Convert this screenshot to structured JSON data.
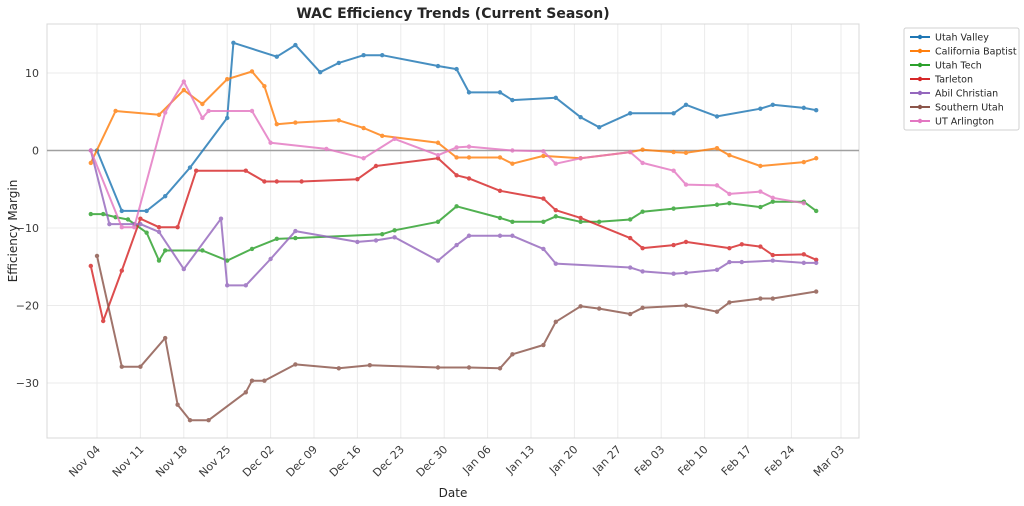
{
  "chart_data": {
    "type": "line",
    "title": "WAC Efficiency Trends (Current Season)",
    "xlabel": "Date",
    "ylabel": "Efficiency Margin",
    "ylim": [
      -37,
      16
    ],
    "yticks": [
      -30,
      -20,
      -10,
      0,
      10
    ],
    "ytick_labels": [
      "−30",
      "−20",
      "−10",
      "0",
      "10"
    ],
    "xlim_dates": [
      "11-01",
      "03-07"
    ],
    "xticks": [
      "11-04",
      "11-11",
      "11-18",
      "11-25",
      "12-02",
      "12-09",
      "12-16",
      "12-23",
      "12-30",
      "01-06",
      "01-13",
      "01-20",
      "01-27",
      "02-03",
      "02-10",
      "02-17",
      "02-24",
      "03-03"
    ],
    "xtick_labels": [
      "Nov 04",
      "Nov 11",
      "Nov 18",
      "Nov 25",
      "Dec 02",
      "Dec 09",
      "Dec 16",
      "Dec 23",
      "Dec 30",
      "Jan 06",
      "Jan 13",
      "Jan 20",
      "Jan 27",
      "Feb 03",
      "Feb 10",
      "Feb 17",
      "Feb 24",
      "Mar 03"
    ],
    "reference_line": 0,
    "grid": true,
    "legend_position": "outside-top-right",
    "series": [
      {
        "name": "Utah Valley",
        "color": "#1f77b4",
        "x": [
          "11-04",
          "11-08",
          "11-12",
          "11-15",
          "11-19",
          "11-25",
          "11-26",
          "12-03",
          "12-06",
          "12-10",
          "12-13",
          "12-17",
          "12-20",
          "12-29",
          "01-01",
          "01-03",
          "01-08",
          "01-10",
          "01-17",
          "01-21",
          "01-24",
          "01-29",
          "02-05",
          "02-07",
          "02-12",
          "02-19",
          "02-21",
          "02-26",
          "02-28"
        ],
        "y": [
          0.0,
          -7.8,
          -7.8,
          -5.9,
          -2.2,
          4.2,
          13.9,
          12.1,
          13.6,
          10.1,
          11.3,
          12.3,
          12.3,
          10.9,
          10.5,
          7.5,
          7.5,
          6.5,
          6.8,
          4.3,
          3.0,
          4.8,
          4.8,
          5.9,
          4.4,
          5.4,
          5.9,
          5.5,
          5.2
        ]
      },
      {
        "name": "California Baptist",
        "color": "#ff7f0e",
        "x": [
          "11-03",
          "11-07",
          "11-14",
          "11-18",
          "11-21",
          "11-25",
          "11-29",
          "12-01",
          "12-03",
          "12-06",
          "12-13",
          "12-17",
          "12-20",
          "12-29",
          "01-01",
          "01-03",
          "01-08",
          "01-10",
          "01-15",
          "01-21",
          "01-29",
          "01-31",
          "02-05",
          "02-07",
          "02-12",
          "02-14",
          "02-19",
          "02-26",
          "02-28"
        ],
        "y": [
          -1.6,
          5.1,
          4.6,
          7.8,
          6.0,
          9.2,
          10.2,
          8.3,
          3.4,
          3.6,
          3.9,
          2.9,
          1.9,
          1.0,
          -0.9,
          -0.9,
          -0.9,
          -1.7,
          -0.7,
          -1.0,
          -0.2,
          0.1,
          -0.2,
          -0.3,
          0.3,
          -0.6,
          -2.0,
          -1.5,
          -1.0
        ]
      },
      {
        "name": "Utah Tech",
        "color": "#2ca02c",
        "x": [
          "11-03",
          "11-05",
          "11-07",
          "11-09",
          "11-12",
          "11-14",
          "11-15",
          "11-21",
          "11-25",
          "11-29",
          "12-03",
          "12-06",
          "12-20",
          "12-22",
          "12-29",
          "01-01",
          "01-08",
          "01-10",
          "01-15",
          "01-17",
          "01-21",
          "01-24",
          "01-29",
          "01-31",
          "02-05",
          "02-12",
          "02-14",
          "02-19",
          "02-21",
          "02-26",
          "02-28"
        ],
        "y": [
          -8.2,
          -8.2,
          -8.6,
          -8.9,
          -10.6,
          -14.2,
          -12.9,
          -12.9,
          -14.2,
          -12.7,
          -11.4,
          -11.3,
          -10.8,
          -10.3,
          -9.2,
          -7.2,
          -8.7,
          -9.2,
          -9.2,
          -8.5,
          -9.2,
          -9.2,
          -8.9,
          -7.9,
          -7.5,
          -7.0,
          -6.8,
          -7.3,
          -6.6,
          -6.6,
          -7.8
        ]
      },
      {
        "name": "Tarleton",
        "color": "#d62728",
        "x": [
          "11-03",
          "11-05",
          "11-08",
          "11-11",
          "11-14",
          "11-17",
          "11-20",
          "11-28",
          "12-01",
          "12-03",
          "12-07",
          "12-16",
          "12-19",
          "12-29",
          "01-01",
          "01-03",
          "01-08",
          "01-15",
          "01-17",
          "01-21",
          "01-29",
          "01-31",
          "02-05",
          "02-07",
          "02-14",
          "02-16",
          "02-19",
          "02-21",
          "02-26",
          "02-28"
        ],
        "y": [
          -14.9,
          -22.0,
          -15.5,
          -8.8,
          -9.9,
          -9.9,
          -2.6,
          -2.6,
          -4.0,
          -4.0,
          -4.0,
          -3.7,
          -2.0,
          -1.0,
          -3.2,
          -3.6,
          -5.2,
          -6.2,
          -7.7,
          -8.7,
          -11.3,
          -12.6,
          -12.2,
          -11.8,
          -12.6,
          -12.1,
          -12.4,
          -13.5,
          -13.4,
          -14.1
        ]
      },
      {
        "name": "Abil Christian",
        "color": "#9467bd",
        "x": [
          "11-03",
          "11-06",
          "11-10",
          "11-11",
          "11-14",
          "11-18",
          "11-24",
          "11-25",
          "11-28",
          "12-02",
          "12-06",
          "12-16",
          "12-19",
          "12-22",
          "12-29",
          "01-01",
          "01-03",
          "01-08",
          "01-10",
          "01-15",
          "01-17",
          "01-29",
          "01-31",
          "02-05",
          "02-07",
          "02-12",
          "02-14",
          "02-16",
          "02-21",
          "02-26",
          "02-28"
        ],
        "y": [
          0.0,
          -9.5,
          -9.5,
          -9.5,
          -10.5,
          -15.3,
          -8.8,
          -17.4,
          -17.4,
          -14.0,
          -10.4,
          -11.8,
          -11.6,
          -11.2,
          -14.2,
          -12.2,
          -11.0,
          -11.0,
          -11.0,
          -12.7,
          -14.6,
          -15.1,
          -15.6,
          -15.9,
          -15.8,
          -15.4,
          -14.4,
          -14.4,
          -14.2,
          -14.5,
          -14.5
        ]
      },
      {
        "name": "Southern Utah",
        "color": "#8c564b",
        "x": [
          "11-04",
          "11-08",
          "11-11",
          "11-15",
          "11-17",
          "11-19",
          "11-22",
          "11-28",
          "11-29",
          "12-01",
          "12-06",
          "12-13",
          "12-18",
          "12-29",
          "01-03",
          "01-08",
          "01-10",
          "01-15",
          "01-17",
          "01-21",
          "01-24",
          "01-29",
          "01-31",
          "02-07",
          "02-12",
          "02-14",
          "02-19",
          "02-21",
          "02-28"
        ],
        "y": [
          -13.6,
          -27.9,
          -27.9,
          -24.2,
          -32.8,
          -34.8,
          -34.8,
          -31.2,
          -29.7,
          -29.7,
          -27.6,
          -28.1,
          -27.7,
          -28.0,
          -28.0,
          -28.1,
          -26.3,
          -25.1,
          -22.1,
          -20.1,
          -20.4,
          -21.1,
          -20.3,
          -20.0,
          -20.8,
          -19.6,
          -19.1,
          -19.1,
          -18.2
        ]
      },
      {
        "name": "UT Arlington",
        "color": "#e377c2",
        "x": [
          "11-03",
          "11-08",
          "11-10",
          "11-15",
          "11-18",
          "11-21",
          "11-22",
          "11-29",
          "12-02",
          "12-11",
          "12-17",
          "12-22",
          "12-29",
          "01-01",
          "01-03",
          "01-10",
          "01-15",
          "01-17",
          "01-21",
          "01-29",
          "01-31",
          "02-05",
          "02-07",
          "02-12",
          "02-14",
          "02-19",
          "02-21",
          "02-26"
        ],
        "y": [
          0.0,
          -9.9,
          -9.9,
          4.9,
          8.9,
          4.2,
          5.1,
          5.1,
          1.0,
          0.2,
          -1.0,
          1.5,
          -0.6,
          0.4,
          0.5,
          0.0,
          -0.1,
          -1.7,
          -1.0,
          -0.2,
          -1.6,
          -2.6,
          -4.4,
          -4.5,
          -5.6,
          -5.3,
          -6.1,
          -6.8
        ]
      }
    ]
  }
}
